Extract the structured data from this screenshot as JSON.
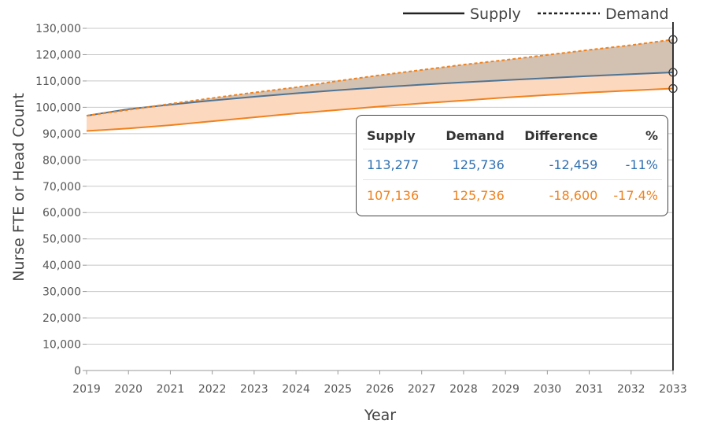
{
  "chart_data": {
    "type": "line",
    "xlabel": "Year",
    "ylabel": "Nurse FTE or Head Count",
    "x": [
      2019,
      2020,
      2021,
      2022,
      2023,
      2024,
      2025,
      2026,
      2027,
      2028,
      2029,
      2030,
      2031,
      2032,
      2033
    ],
    "ylim": [
      0,
      130000
    ],
    "yticks": [
      "0",
      "10,000",
      "20,000",
      "30,000",
      "40,000",
      "50,000",
      "60,000",
      "70,000",
      "80,000",
      "90,000",
      "100,000",
      "110,000",
      "120,000",
      "130,000"
    ],
    "grid": true,
    "legend": {
      "position": "top-right",
      "entries": [
        {
          "label": "Supply",
          "style": "solid"
        },
        {
          "label": "Demand",
          "style": "dashed"
        }
      ]
    },
    "series": [
      {
        "role": "supply-blue",
        "style": "solid",
        "color": "#4f7494",
        "values": [
          96800,
          99300,
          101000,
          102600,
          104000,
          105300,
          106500,
          107600,
          108600,
          109500,
          110300,
          111100,
          111900,
          112600,
          113277
        ]
      },
      {
        "role": "supply-orange",
        "style": "solid",
        "color": "#f0821e",
        "values": [
          91000,
          92000,
          93200,
          94700,
          96200,
          97700,
          99000,
          100300,
          101500,
          102600,
          103700,
          104700,
          105600,
          106400,
          107136
        ]
      },
      {
        "role": "demand",
        "style": "dashed",
        "color": "#f0821e",
        "values": [
          96800,
          99000,
          101300,
          103500,
          105600,
          107600,
          110000,
          112200,
          114200,
          116200,
          118000,
          119900,
          121800,
          123600,
          125736
        ]
      }
    ],
    "fill_colors": {
      "orange_band": "#fcd8bf",
      "gray_band": "#d3c1b1"
    },
    "hover": {
      "year": 2033
    }
  },
  "tooltip": {
    "headers": [
      "Supply",
      "Demand",
      "Difference",
      "%"
    ],
    "rows": [
      {
        "supply": "113,277",
        "demand": "125,736",
        "difference": "-12,459",
        "percent": "-11%",
        "color": "#2f6fb0"
      },
      {
        "supply": "107,136",
        "demand": "125,736",
        "difference": "-18,600",
        "percent": "-17.4%",
        "color": "#f0821e"
      }
    ]
  }
}
